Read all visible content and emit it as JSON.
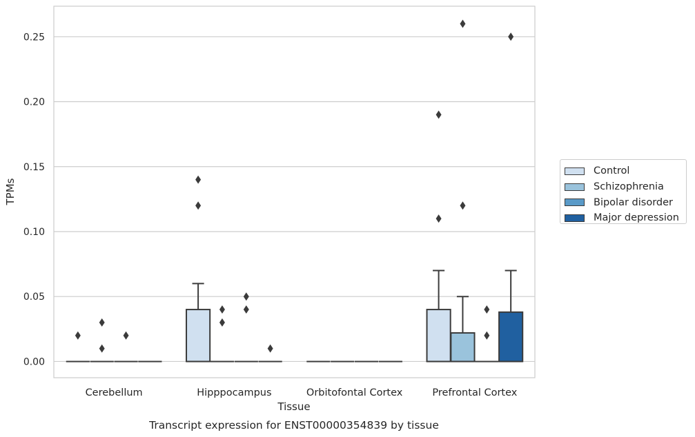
{
  "chart_data": {
    "type": "box",
    "title": "Transcript expression for ENST00000354839 by tissue",
    "xlabel": "Tissue",
    "ylabel": "TPMs",
    "ylim": [
      -0.0125,
      0.2735
    ],
    "yticks": [
      "0.00",
      "0.05",
      "0.10",
      "0.15",
      "0.20",
      "0.25"
    ],
    "ytick_values": [
      0,
      0.05,
      0.1,
      0.15,
      0.2,
      0.25
    ],
    "categories": [
      "Cerebellum",
      "Hipppocampus",
      "Orbitofontal Cortex",
      "Prefrontal Cortex"
    ],
    "grid": true,
    "legend_position": "center-right, outside plot",
    "series": [
      {
        "name": "Control",
        "color": "#d0e0f0",
        "boxes": [
          {
            "q1": 0,
            "median": 0,
            "q3": 0,
            "whisker_low": 0,
            "whisker_high": 0,
            "outliers": [
              0.02
            ]
          },
          {
            "q1": 0,
            "median": 0,
            "q3": 0.04,
            "whisker_low": 0,
            "whisker_high": 0.06,
            "outliers": [
              0.12,
              0.14
            ]
          },
          {
            "q1": 0,
            "median": 0,
            "q3": 0,
            "whisker_low": 0,
            "whisker_high": 0,
            "outliers": []
          },
          {
            "q1": 0,
            "median": 0,
            "q3": 0.04,
            "whisker_low": 0,
            "whisker_high": 0.07,
            "outliers": [
              0.11,
              0.19
            ]
          }
        ]
      },
      {
        "name": "Schizophrenia",
        "color": "#9ac3dc",
        "boxes": [
          {
            "q1": 0,
            "median": 0,
            "q3": 0,
            "whisker_low": 0,
            "whisker_high": 0,
            "outliers": [
              0.01,
              0.03
            ]
          },
          {
            "q1": 0,
            "median": 0,
            "q3": 0,
            "whisker_low": 0,
            "whisker_high": 0,
            "outliers": [
              0.03,
              0.04
            ]
          },
          {
            "q1": 0,
            "median": 0,
            "q3": 0,
            "whisker_low": 0,
            "whisker_high": 0,
            "outliers": []
          },
          {
            "q1": 0,
            "median": 0,
            "q3": 0.022,
            "whisker_low": 0,
            "whisker_high": 0.05,
            "outliers": [
              0.12,
              0.26
            ]
          }
        ]
      },
      {
        "name": "Bipolar disorder",
        "color": "#5a9ac8",
        "boxes": [
          {
            "q1": 0,
            "median": 0,
            "q3": 0,
            "whisker_low": 0,
            "whisker_high": 0,
            "outliers": [
              0.02
            ]
          },
          {
            "q1": 0,
            "median": 0,
            "q3": 0,
            "whisker_low": 0,
            "whisker_high": 0,
            "outliers": [
              0.04,
              0.05
            ]
          },
          {
            "q1": 0,
            "median": 0,
            "q3": 0,
            "whisker_low": 0,
            "whisker_high": 0,
            "outliers": []
          },
          {
            "q1": 0,
            "median": 0,
            "q3": 0,
            "whisker_low": 0,
            "whisker_high": 0,
            "outliers": [
              0.02,
              0.04
            ]
          }
        ]
      },
      {
        "name": "Major depression",
        "color": "#2060a0",
        "boxes": [
          {
            "q1": 0,
            "median": 0,
            "q3": 0,
            "whisker_low": 0,
            "whisker_high": 0,
            "outliers": []
          },
          {
            "q1": 0,
            "median": 0,
            "q3": 0,
            "whisker_low": 0,
            "whisker_high": 0,
            "outliers": [
              0.01
            ]
          },
          {
            "q1": 0,
            "median": 0,
            "q3": 0,
            "whisker_low": 0,
            "whisker_high": 0,
            "outliers": []
          },
          {
            "q1": 0,
            "median": 0,
            "q3": 0.038,
            "whisker_low": 0,
            "whisker_high": 0.07,
            "outliers": [
              0.25
            ]
          }
        ]
      }
    ]
  }
}
